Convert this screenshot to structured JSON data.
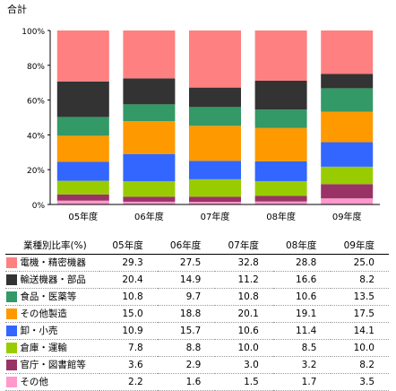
{
  "title": "合計",
  "table_header": "業種別比率(%)",
  "chart_data": {
    "type": "bar",
    "stacked": true,
    "categories": [
      "05年度",
      "06年度",
      "07年度",
      "08年度",
      "09年度"
    ],
    "ylim": [
      0,
      100
    ],
    "yticks": [
      "0%",
      "20%",
      "40%",
      "60%",
      "80%",
      "100%"
    ],
    "grid": false,
    "series": [
      {
        "name": "電機・精密機器",
        "color": "#ff8080",
        "values": [
          29.3,
          27.5,
          32.8,
          28.8,
          25.0
        ]
      },
      {
        "name": "輸送機器・部品",
        "color": "#333333",
        "values": [
          20.4,
          14.9,
          11.2,
          16.6,
          8.2
        ]
      },
      {
        "name": "食品・医薬等",
        "color": "#339966",
        "values": [
          10.8,
          9.7,
          10.8,
          10.6,
          13.5
        ]
      },
      {
        "name": "その他製造",
        "color": "#ff9900",
        "values": [
          15.0,
          18.8,
          20.1,
          19.1,
          17.5
        ]
      },
      {
        "name": "卸・小売",
        "color": "#3366ff",
        "values": [
          10.9,
          15.7,
          10.6,
          11.4,
          14.1
        ]
      },
      {
        "name": "倉庫・運輸",
        "color": "#99cc00",
        "values": [
          7.8,
          8.8,
          10.0,
          8.5,
          10.0
        ]
      },
      {
        "name": "官庁・図書館等",
        "color": "#993366",
        "values": [
          3.6,
          2.9,
          3.0,
          3.2,
          8.2
        ]
      },
      {
        "name": "その他",
        "color": "#ff99cc",
        "values": [
          2.2,
          1.6,
          1.5,
          1.7,
          3.5
        ]
      }
    ]
  }
}
